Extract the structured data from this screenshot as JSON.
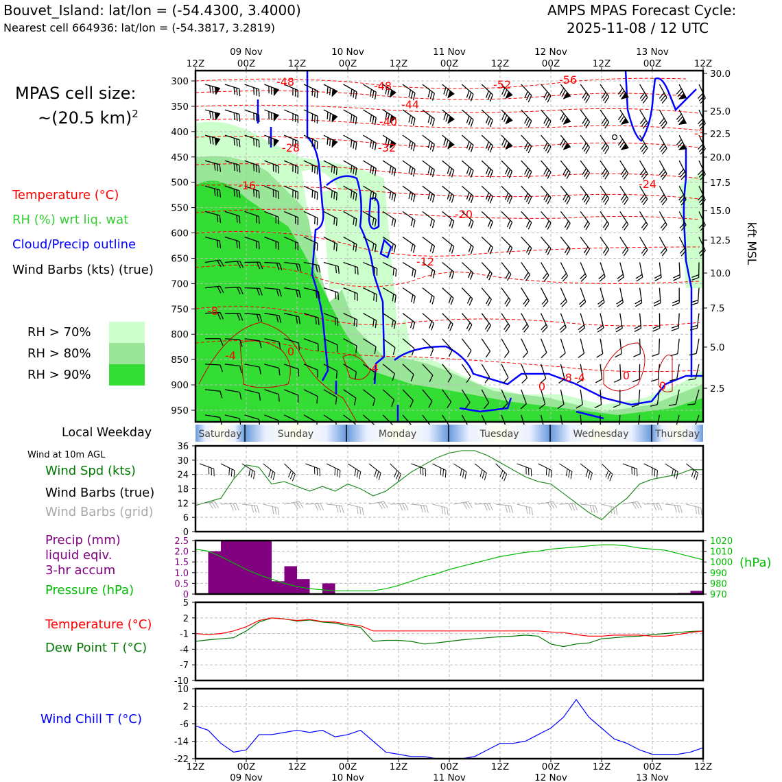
{
  "header": {
    "station": "Bouvet_Island: lat/lon = (-54.4300, 3.4000)",
    "nearest": "Nearest cell 664936: lat/lon = (-54.3817, 3.2819)",
    "forecast_title": "AMPS MPAS Forecast Cycle:",
    "forecast_cycle": "2025-11-08 / 12 UTC"
  },
  "sidebar": {
    "cell_size_label": "MPAS cell size:",
    "cell_size_value": "~(20.5 km)",
    "cell_size_exp": "2",
    "legend_temperature": "Temperature (°C)",
    "legend_rh": "RH (%) wrt liq. wat",
    "legend_cloud": "Cloud/Precip outline",
    "legend_wind": "Wind Barbs (kts) (true)",
    "rh70": "RH > 70%",
    "rh80": "RH > 80%",
    "rh90": "RH > 90%",
    "local_weekday": "Local Weekday",
    "wind_10m": "Wind at 10m AGL",
    "wind_spd": "Wind Spd (kts)",
    "barbs_true": "Wind Barbs (true)",
    "barbs_grid": "Wind Barbs (grid)",
    "precip_1": "Precip (mm)",
    "precip_2": "liquid eqiv.",
    "precip_3": "3-hr accum",
    "pressure": "Pressure (hPa)",
    "temp_panel": "Temperature (°C)",
    "dew_panel": "Dew Point T (°C)",
    "windchill": "Wind Chill T (°C)"
  },
  "colors": {
    "temperature": "#ff0000",
    "rh_label": "#33cc33",
    "cloud": "#0000ff",
    "rh70": "#ccffcc",
    "rh80": "#99e699",
    "rh90": "#33dd33",
    "precip": "#800080",
    "pressure": "#00bb00",
    "dewpoint": "#007700",
    "windchill": "#0000ff",
    "grid_barb": "#aaaaaa",
    "day_band": "#6699dd"
  },
  "chart_data": [
    {
      "type": "time-height cross section",
      "title": "Upper-air profile",
      "pressure_axis_hpa": [
        300,
        350,
        400,
        450,
        500,
        550,
        600,
        650,
        700,
        750,
        800,
        850,
        900,
        950
      ],
      "height_axis_label": "kft MSL",
      "height_ticks_kft": [
        "30.0",
        "25.0",
        "22.5",
        "20.0",
        "17.5",
        "15.0",
        "12.5",
        "10.0",
        "7.5",
        "5.0",
        "2.5"
      ],
      "time_top_labels": [
        "12Z",
        "00Z",
        "12Z",
        "00Z",
        "12Z",
        "00Z",
        "12Z",
        "00Z",
        "12Z",
        "00Z",
        "12Z"
      ],
      "date_labels": [
        "09 Nov",
        "10 Nov",
        "11 Nov",
        "12 Nov",
        "13 Nov"
      ],
      "temperature_contour_labels": [
        "-48",
        "-48",
        "-52",
        "-56",
        "-44",
        "-40",
        "-32",
        "-28",
        "-16",
        "-20",
        "-24",
        "-12",
        "-8",
        "-4",
        "0",
        "-4",
        "0",
        "-8",
        "-4",
        "0",
        "-3",
        "0"
      ],
      "weekdays": [
        "Saturday",
        "Sunday",
        "Monday",
        "Tuesday",
        "Wednesday",
        "Thursday"
      ]
    },
    {
      "type": "line",
      "title": "Wind Spd (kts)",
      "ylim": [
        0,
        36
      ],
      "yticks": [
        "0",
        "6",
        "12",
        "18",
        "24",
        "30",
        "36"
      ],
      "x_hours": [
        0,
        6,
        9,
        12,
        15,
        18,
        21,
        24,
        27,
        30,
        33,
        36,
        39,
        42,
        45,
        48,
        51,
        54,
        57,
        60,
        63,
        66,
        69,
        72,
        75,
        78,
        81,
        84,
        87,
        90,
        93,
        96,
        99,
        102,
        105,
        108,
        111,
        114,
        117,
        120
      ],
      "values": [
        11,
        14,
        22,
        28,
        27,
        20,
        21,
        19,
        17,
        19,
        17,
        20,
        18,
        15,
        17,
        21,
        25,
        28,
        31,
        33,
        34,
        34,
        32,
        29,
        26,
        23,
        21,
        20,
        16,
        12,
        8,
        5,
        10,
        14,
        20,
        22,
        23,
        24,
        26,
        26
      ]
    },
    {
      "type": "bar+line",
      "title": "Precip (mm) / Pressure (hPa)",
      "precip_ylim": [
        0,
        2.5
      ],
      "precip_yticks": [
        "0",
        "0.5",
        "1.0",
        "1.5",
        "2.0",
        "2.5"
      ],
      "precip_bars": [
        {
          "start_hour": 3,
          "end_hour": 6,
          "value": 2.0
        },
        {
          "start_hour": 6,
          "end_hour": 18,
          "value": 2.5
        },
        {
          "start_hour": 18,
          "end_hour": 21,
          "value": 0.6
        },
        {
          "start_hour": 21,
          "end_hour": 24,
          "value": 1.3
        },
        {
          "start_hour": 24,
          "end_hour": 27,
          "value": 0.7
        },
        {
          "start_hour": 30,
          "end_hour": 33,
          "value": 0.5
        },
        {
          "start_hour": 114,
          "end_hour": 117,
          "value": 0.05
        },
        {
          "start_hour": 117,
          "end_hour": 120,
          "value": 0.15
        }
      ],
      "pressure_ylim": [
        970,
        1020
      ],
      "pressure_yticks": [
        "970",
        "980",
        "990",
        "1000",
        "1010",
        "1020"
      ],
      "pressure_unit": "(hPa)",
      "pressure_values": [
        1012,
        1010,
        1005,
        999,
        993,
        988,
        984,
        980,
        977,
        975,
        974,
        973,
        973,
        973,
        973,
        975,
        978,
        982,
        986,
        989,
        993,
        996,
        999,
        1002,
        1005,
        1007,
        1009,
        1010,
        1012,
        1013,
        1014,
        1015,
        1016,
        1016,
        1015,
        1013,
        1012,
        1011,
        1008,
        1005,
        1002
      ]
    },
    {
      "type": "line",
      "title": "Temperature / Dew Point (°C)",
      "ylim": [
        -10,
        5
      ],
      "yticks": [
        "5",
        "2",
        "-1",
        "-4",
        "-7",
        "-10"
      ],
      "x_hours": [
        0,
        3,
        6,
        9,
        12,
        15,
        18,
        21,
        24,
        27,
        30,
        33,
        36,
        39,
        42,
        45,
        48,
        51,
        54,
        57,
        60,
        63,
        66,
        69,
        72,
        75,
        78,
        81,
        84,
        87,
        90,
        93,
        96,
        99,
        102,
        105,
        108,
        111,
        114,
        117,
        120
      ],
      "temperature": [
        -1,
        -1.2,
        -1,
        -0.5,
        0.3,
        1.5,
        2,
        1.8,
        1.5,
        1.7,
        1.3,
        1.2,
        0.8,
        0.5,
        -0.5,
        -0.5,
        -0.5,
        -0.5,
        -0.5,
        -0.5,
        -0.5,
        -0.5,
        -0.5,
        -0.5,
        -0.5,
        -0.5,
        -0.5,
        -0.5,
        -0.7,
        -0.8,
        -1.2,
        -1.5,
        -1.5,
        -1.3,
        -1.3,
        -1.3,
        -1.5,
        -1.5,
        -1.2,
        -0.8,
        -0.5
      ],
      "dewpoint": [
        -2.5,
        -2.2,
        -2,
        -1.8,
        -0.5,
        1.2,
        2,
        1.8,
        1.4,
        1.6,
        1.2,
        1.0,
        0.5,
        0.2,
        -2.5,
        -2.3,
        -2.3,
        -2.5,
        -3,
        -2.8,
        -2.5,
        -2.2,
        -2,
        -1.8,
        -1.6,
        -1.5,
        -1.3,
        -1.5,
        -3.0,
        -3.5,
        -3.0,
        -2.8,
        -2.0,
        -1.8,
        -1.6,
        -1.5,
        -1.2,
        -1.0,
        -0.8,
        -0.6,
        -0.5
      ]
    },
    {
      "type": "line",
      "title": "Wind Chill T (°C)",
      "ylim": [
        -22,
        10
      ],
      "yticks": [
        "10",
        "2",
        "-6",
        "-14",
        "-22"
      ],
      "x_hours": [
        0,
        3,
        6,
        9,
        12,
        15,
        18,
        21,
        24,
        27,
        30,
        33,
        36,
        39,
        42,
        45,
        48,
        51,
        54,
        57,
        60,
        63,
        66,
        69,
        72,
        75,
        78,
        81,
        84,
        87,
        90,
        93,
        96,
        99,
        102,
        105,
        108,
        111,
        114,
        117,
        120
      ],
      "values": [
        -7,
        -9,
        -15,
        -19,
        -18,
        -11,
        -11,
        -10,
        -9,
        -10,
        -9,
        -12,
        -11,
        -9,
        -14,
        -19,
        -20,
        -21,
        -21,
        -22,
        -22,
        -22,
        -21,
        -18,
        -15,
        -15,
        -14,
        -11,
        -8,
        -3,
        5,
        -3,
        -8,
        -13,
        -15,
        -18,
        -20,
        -20,
        -20,
        -19,
        -17
      ]
    }
  ]
}
